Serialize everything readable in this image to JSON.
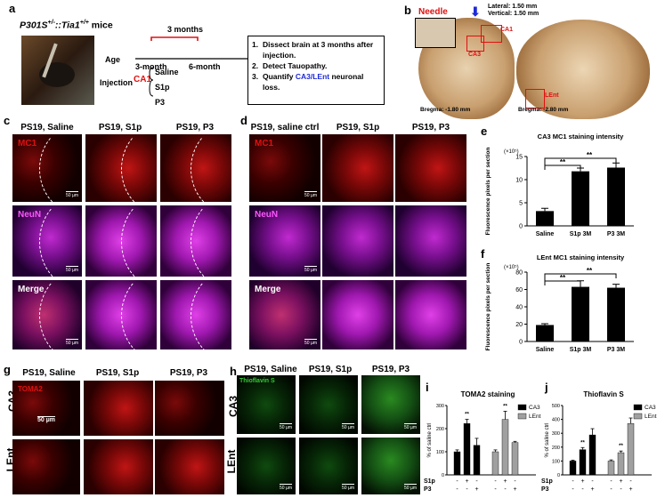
{
  "panels": {
    "a": {
      "label": "a",
      "mouse_title": "P301S",
      "mouse_sup1": "+/-",
      "mouse_sep": "::",
      "mouse_gene": "Tia1",
      "mouse_sup2": "+/+",
      "mouse_suffix": " mice",
      "months": "3 months",
      "age": "Age",
      "age_start": "3-month",
      "age_end": "6-month",
      "injection": "Injection",
      "site": "CA1",
      "treatments": [
        "Saline",
        "S1p",
        "P3"
      ],
      "steps": [
        {
          "num": "1.",
          "text": "Dissect brain at 3 months after injection."
        },
        {
          "num": "2.",
          "text": "Detect Tauopathy."
        },
        {
          "num": "3.",
          "text_a": "Quantify ",
          "text_b": "CA3/LEnt",
          "text_c": " neuronal loss."
        }
      ]
    },
    "b": {
      "label": "b",
      "needle": "Needle",
      "lateral": "Lateral: 1.50 mm",
      "vertical": "Vertical: 1.50 mm",
      "ca1": "CA1",
      "ca3": "CA3",
      "lent": "LEnt",
      "bregma1": "Bregma: -1.80 mm",
      "bregma2": "Bregma: -2.80 mm"
    },
    "c": {
      "label": "c",
      "titles": [
        "PS19, Saline",
        "PS19, S1p",
        "PS19, P3"
      ],
      "rows": [
        "MC1",
        "NeuN",
        "Merge"
      ],
      "scale": "50 µm"
    },
    "d": {
      "label": "d",
      "titles": [
        "PS19, saline ctrl",
        "PS19, S1p",
        "PS19, P3"
      ],
      "rows": [
        "MC1",
        "NeuN",
        "Merge"
      ],
      "scale": "50 µm"
    },
    "e": {
      "label": "e",
      "sig": [
        "**",
        "**"
      ]
    },
    "f": {
      "label": "f",
      "sig": [
        "**",
        "**"
      ]
    },
    "g": {
      "label": "g",
      "titles": [
        "PS19, Saline",
        "PS19, S1p",
        "PS19, P3"
      ],
      "rows": [
        "CA3",
        "LEnt"
      ],
      "stain": "TOMA2",
      "scale": "50 µm"
    },
    "h": {
      "label": "h",
      "titles": [
        "PS19, Saline",
        "PS19, S1p",
        "PS19, P3"
      ],
      "rows": [
        "CA3",
        "LEnt"
      ],
      "stain": "Thioflavin S",
      "scale": "50 µm"
    },
    "i": {
      "label": "i",
      "sig": [
        "**",
        "**"
      ]
    },
    "j": {
      "label": "j",
      "sig": [
        "**",
        "**"
      ]
    }
  },
  "colors": {
    "sig_blue": "#1f2bd6",
    "red_label": "#e01010",
    "magenta_label": "#ff55ff",
    "green_label": "#33cc33"
  },
  "chart_data": [
    {
      "id": "e",
      "type": "bar",
      "title": "CA3 MC1 staining intensity",
      "ylabel": "Fluorescence pixels per section",
      "yscale_note": "(×10⁵)",
      "categories": [
        "Saline",
        "S1p 3M",
        "P3 3M"
      ],
      "values": [
        3.2,
        11.8,
        12.6
      ],
      "errors": [
        0.6,
        0.7,
        1.0
      ],
      "ylim": [
        0,
        15
      ],
      "yticks": [
        0,
        5,
        10,
        15
      ],
      "color": "#000000"
    },
    {
      "id": "f",
      "type": "bar",
      "title": "LEnt MC1 staining intensity",
      "ylabel": "Fluorescence pixels per section",
      "yscale_note": "(×10⁵)",
      "categories": [
        "Saline",
        "S1p 3M",
        "P3 3M"
      ],
      "values": [
        19,
        63,
        62
      ],
      "errors": [
        1.5,
        7,
        4
      ],
      "ylim": [
        0,
        80
      ],
      "yticks": [
        0,
        20,
        40,
        60,
        80
      ],
      "color": "#000000"
    },
    {
      "id": "i",
      "type": "bar",
      "title": "TOMA2 staining",
      "ylabel": "% of saline ctrl",
      "ylim": [
        0,
        300
      ],
      "yticks": [
        0,
        100,
        200,
        300
      ],
      "row_labels": [
        "S1p",
        "P3"
      ],
      "groups": [
        {
          "name": "CA3",
          "color": "#000000",
          "values": [
            100,
            222,
            128
          ],
          "errors": [
            8,
            18,
            30
          ],
          "signs_s1p": [
            "-",
            "+",
            "-"
          ],
          "signs_p3": [
            "-",
            "-",
            "+"
          ]
        },
        {
          "name": "LEnt",
          "color": "#a0a0a0",
          "values": [
            100,
            240,
            140
          ],
          "errors": [
            8,
            35,
            5
          ],
          "signs_s1p": [
            "-",
            "+",
            "-"
          ],
          "signs_p3": [
            "-",
            "-",
            "+"
          ]
        }
      ]
    },
    {
      "id": "j",
      "type": "bar",
      "title": "Thioflavin S",
      "ylabel": "% of saline ctrl",
      "ylim": [
        0,
        500
      ],
      "yticks": [
        0,
        100,
        200,
        300,
        400,
        500
      ],
      "row_labels": [
        "S1p",
        "P3"
      ],
      "groups": [
        {
          "name": "CA3",
          "color": "#000000",
          "values": [
            100,
            182,
            288
          ],
          "errors": [
            6,
            15,
            45
          ],
          "signs_s1p": [
            "-",
            "+",
            "-"
          ],
          "signs_p3": [
            "-",
            "-",
            "+"
          ]
        },
        {
          "name": "LEnt",
          "color": "#a0a0a0",
          "values": [
            100,
            160,
            370
          ],
          "errors": [
            8,
            12,
            40
          ],
          "signs_s1p": [
            "-",
            "+",
            "-"
          ],
          "signs_p3": [
            "-",
            "-",
            "+"
          ]
        }
      ]
    }
  ]
}
